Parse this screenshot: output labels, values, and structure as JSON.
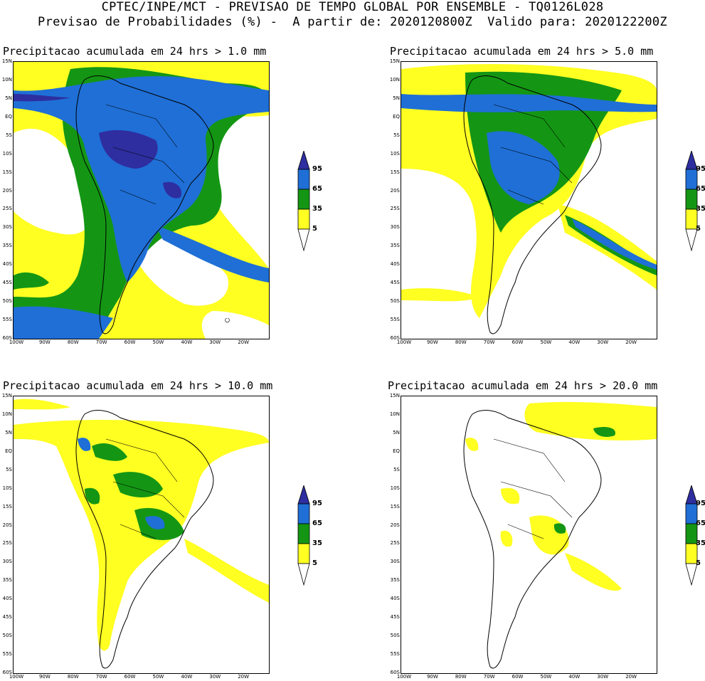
{
  "header": {
    "line1": "CPTEC/INPE/MCT - PREVISAO DE TEMPO GLOBAL POR ENSEMBLE - TQ0126L028",
    "line2": "Previsao de Probabilidades (%) -  A partir de: 2020120800Z  Valido para: 2020122200Z"
  },
  "panels": [
    {
      "title": "Precipitacao acumulada em 24 hrs > 1.0 mm",
      "threshold_mm": 1.0
    },
    {
      "title": "Precipitacao acumulada em 24 hrs > 5.0 mm",
      "threshold_mm": 5.0
    },
    {
      "title": "Precipitacao acumulada em 24 hrs > 10.0 mm",
      "threshold_mm": 10.0
    },
    {
      "title": "Precipitacao acumulada em 24 hrs > 20.0 mm",
      "threshold_mm": 20.0
    }
  ],
  "lat_labels": [
    "15N",
    "10N",
    "5N",
    "EQ",
    "5S",
    "10S",
    "15S",
    "20S",
    "25S",
    "30S",
    "35S",
    "40S",
    "45S",
    "50S",
    "55S",
    "60S"
  ],
  "lon_labels": [
    "100W",
    "90W",
    "80W",
    "70W",
    "60W",
    "50W",
    "40W",
    "30W",
    "20W"
  ],
  "colorbar": {
    "labels": [
      "95",
      "65",
      "35",
      "5"
    ],
    "colors": [
      "#2e2ea0",
      "#1f6fd6",
      "#149614",
      "#ffff22",
      "#ffffff"
    ]
  },
  "colors": {
    "c5": "#ffff22",
    "c35": "#149614",
    "c65": "#1f6fd6",
    "c95": "#2e2ea0"
  }
}
